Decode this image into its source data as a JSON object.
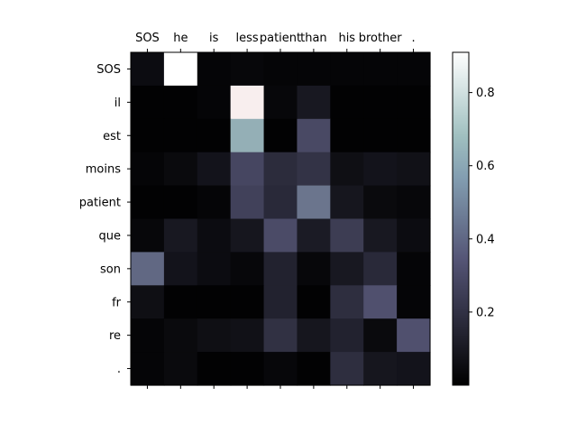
{
  "chart_data": {
    "type": "heatmap",
    "colormap": "bone",
    "x_labels": [
      "SOS",
      "he",
      "is",
      "less",
      "patient",
      "than",
      "his",
      "brother",
      "."
    ],
    "y_labels": [
      "SOS",
      "il",
      "est",
      "moins",
      "patient",
      "que",
      "son",
      "fr",
      "re",
      "."
    ],
    "values": [
      [
        0.05,
        0.91,
        0.02,
        0.03,
        0.02,
        0.02,
        0.02,
        0.02,
        0.02
      ],
      [
        0.01,
        0.01,
        0.02,
        0.84,
        0.03,
        0.1,
        0.01,
        0.01,
        0.01
      ],
      [
        0.01,
        0.01,
        0.01,
        0.61,
        0.01,
        0.3,
        0.01,
        0.01,
        0.01
      ],
      [
        0.02,
        0.04,
        0.08,
        0.29,
        0.18,
        0.21,
        0.06,
        0.08,
        0.07
      ],
      [
        0.01,
        0.01,
        0.02,
        0.27,
        0.17,
        0.44,
        0.09,
        0.04,
        0.03
      ],
      [
        0.03,
        0.1,
        0.05,
        0.09,
        0.31,
        0.11,
        0.25,
        0.1,
        0.05
      ],
      [
        0.4,
        0.08,
        0.05,
        0.03,
        0.14,
        0.03,
        0.1,
        0.17,
        0.02
      ],
      [
        0.06,
        0.01,
        0.01,
        0.01,
        0.14,
        0.01,
        0.19,
        0.33,
        0.02
      ],
      [
        0.02,
        0.04,
        0.06,
        0.07,
        0.2,
        0.09,
        0.14,
        0.04,
        0.33
      ],
      [
        0.02,
        0.04,
        0.01,
        0.01,
        0.03,
        0.01,
        0.19,
        0.09,
        0.08
      ]
    ],
    "colorbar": {
      "range": [
        0.0,
        0.91
      ],
      "ticks": [
        0.2,
        0.4,
        0.6,
        0.8
      ],
      "tick_labels": [
        "0.2",
        "0.4",
        "0.6",
        "0.8"
      ]
    }
  }
}
